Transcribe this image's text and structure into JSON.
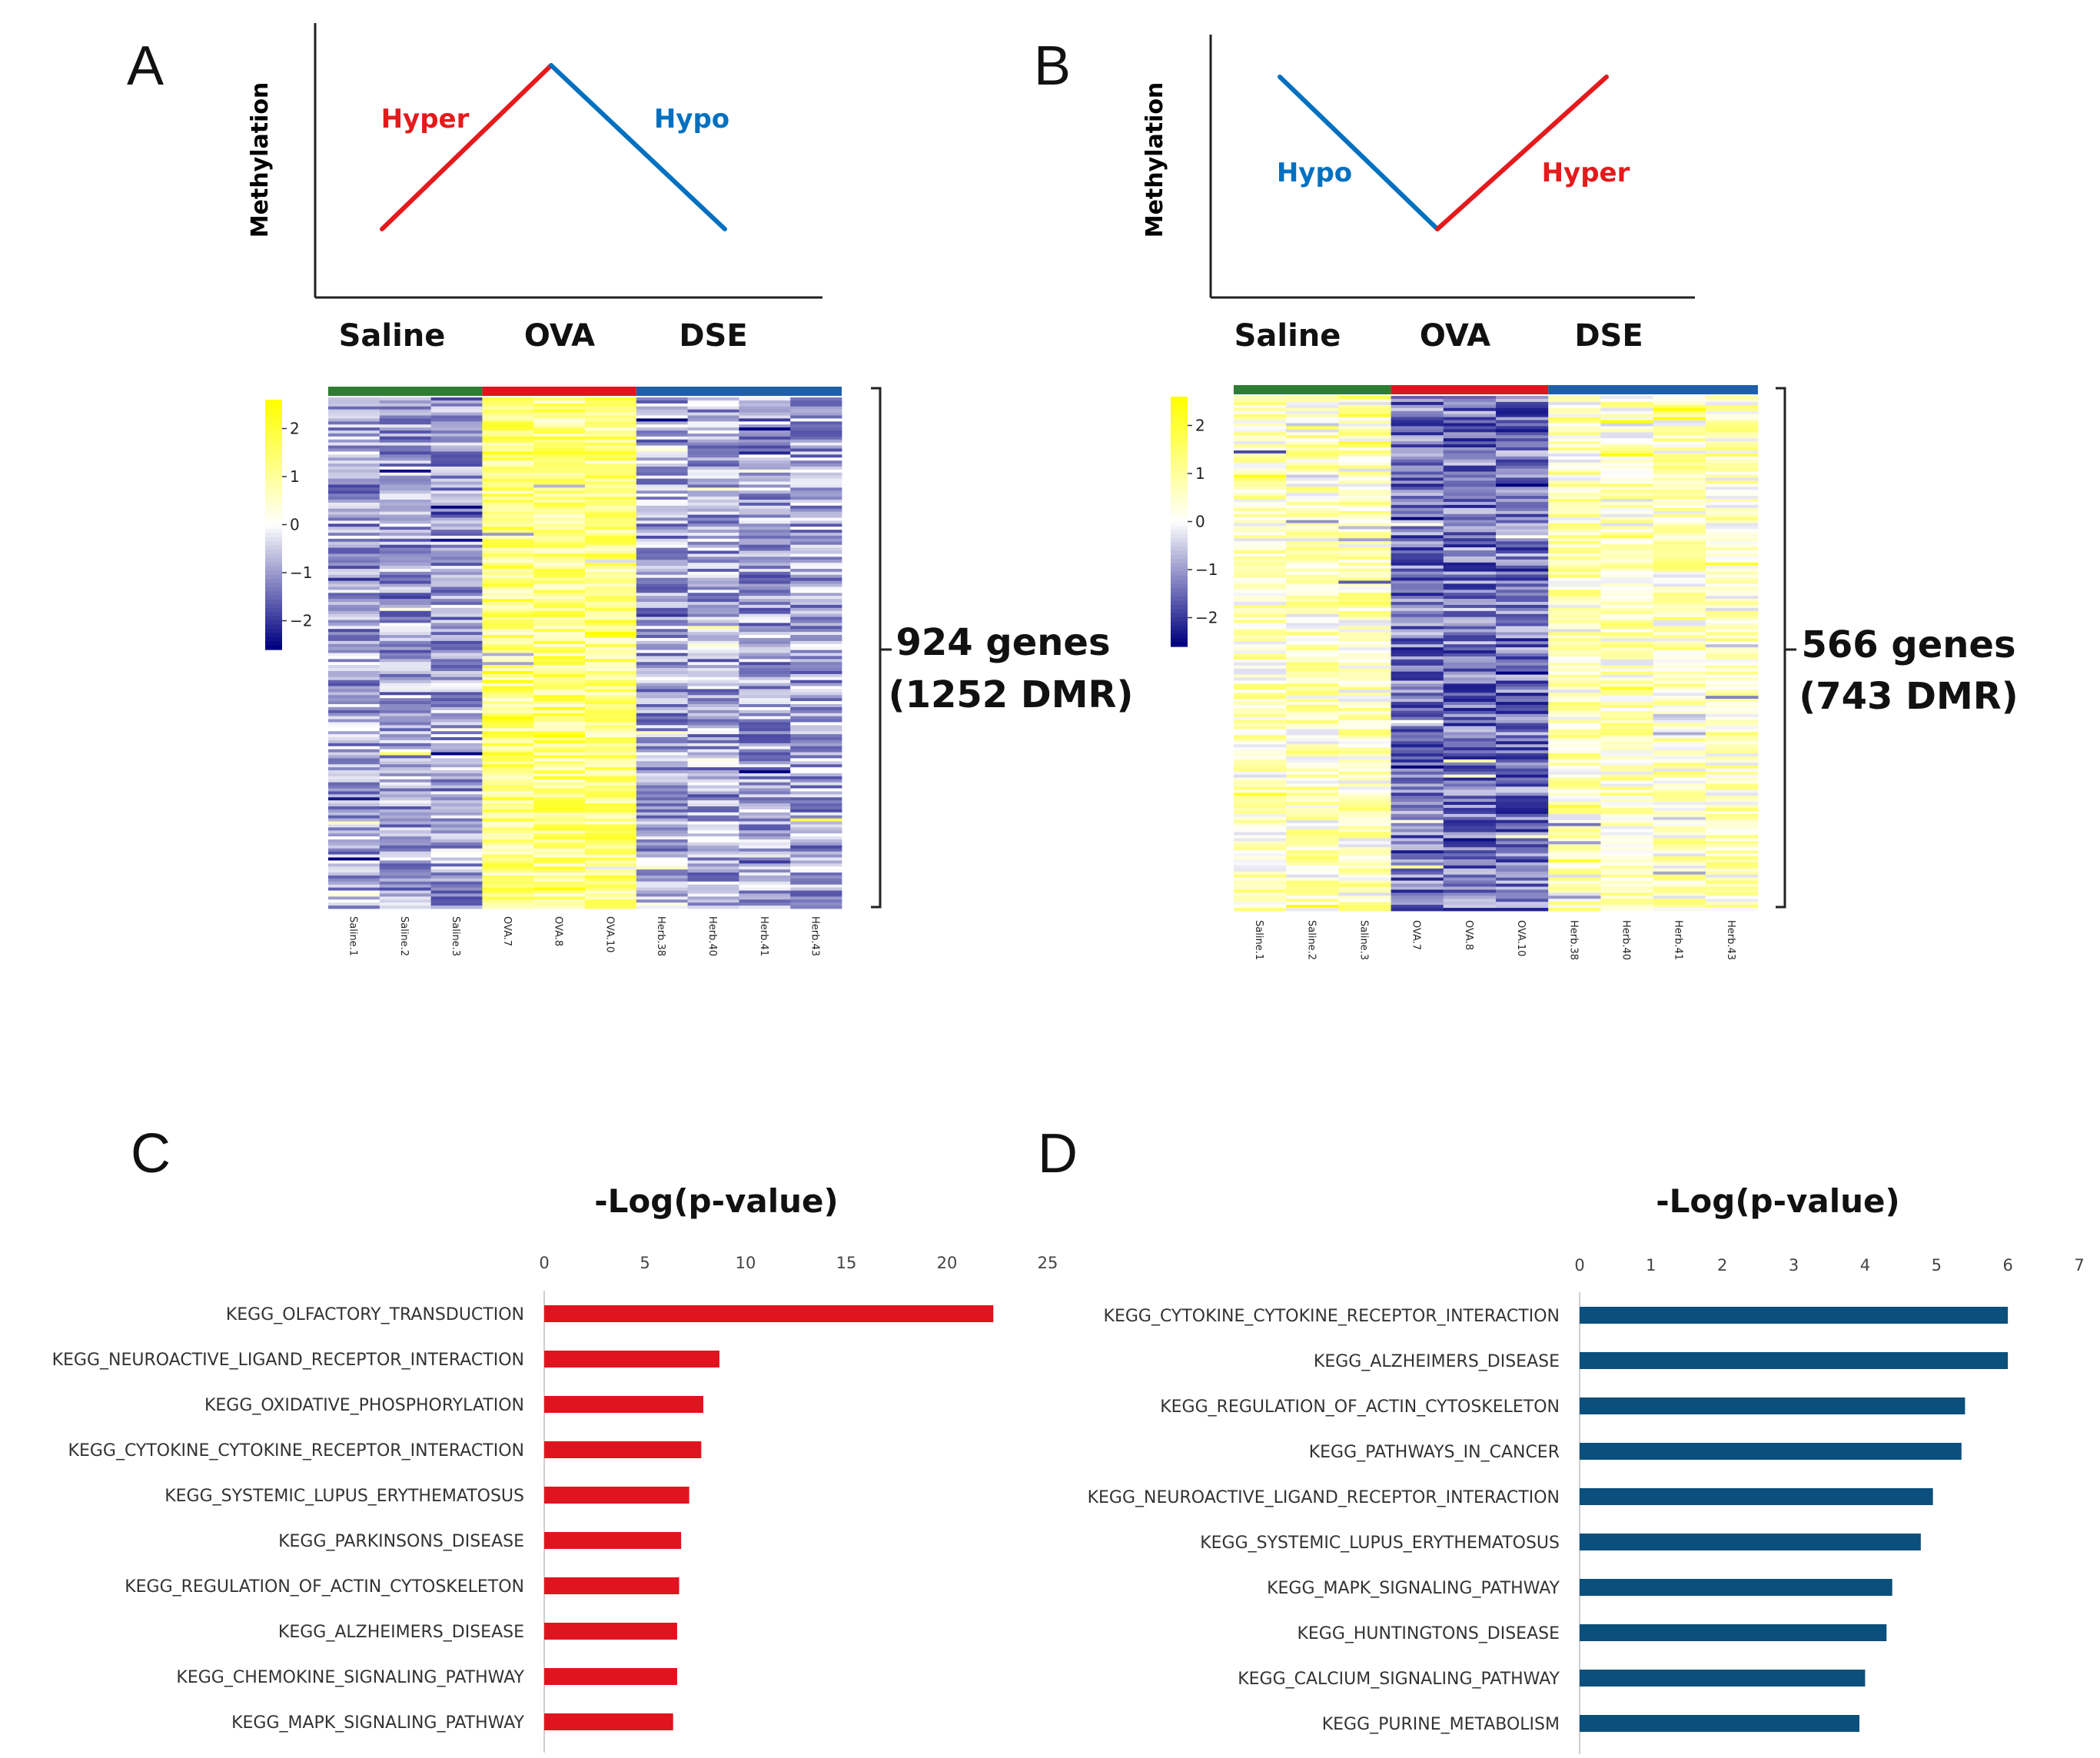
{
  "panels": {
    "A": {
      "letter": "A",
      "ylabel": "Methylation",
      "trend_left": {
        "text": "Hyper",
        "color": "#e41a1c"
      },
      "trend_right": {
        "text": "Hypo",
        "color": "#0070c0"
      },
      "trend_shape": [
        0,
        1,
        0
      ],
      "groups": [
        "Saline",
        "OVA",
        "DSE"
      ],
      "gene_count_line1": "924 genes",
      "gene_count_line2": "(1252 DMR)",
      "colorbar_ticks": [
        "2",
        "1",
        "0",
        "−1",
        "−2"
      ],
      "samples": [
        "Saline.1",
        "Saline.2",
        "Saline.3",
        "OVA.7",
        "OVA.8",
        "OVA.10",
        "Herb.38",
        "Herb.40",
        "Herb.41",
        "Herb.43"
      ],
      "sample_levels": [
        -0.9,
        -0.9,
        -0.9,
        1.3,
        1.3,
        1.3,
        -0.9,
        -0.9,
        -0.9,
        -0.9
      ]
    },
    "B": {
      "letter": "B",
      "ylabel": "Methylation",
      "trend_left": {
        "text": "Hypo",
        "color": "#0070c0"
      },
      "trend_right": {
        "text": "Hyper",
        "color": "#e41a1c"
      },
      "trend_shape": [
        1,
        0,
        1
      ],
      "groups": [
        "Saline",
        "OVA",
        "DSE"
      ],
      "gene_count_line1": "566 genes",
      "gene_count_line2": "(743 DMR)",
      "colorbar_ticks": [
        "2",
        "1",
        "0",
        "−1",
        "−2"
      ],
      "samples": [
        "Saline.1",
        "Saline.2",
        "Saline.3",
        "OVA.7",
        "OVA.8",
        "OVA.10",
        "Herb.38",
        "Herb.40",
        "Herb.41",
        "Herb.43"
      ],
      "sample_levels": [
        0.6,
        0.6,
        0.6,
        -1.4,
        -1.4,
        -1.4,
        0.6,
        0.6,
        0.6,
        0.6
      ]
    }
  },
  "colors": {
    "saline": "#2e7d32",
    "ova": "#e0141e",
    "dse": "#1f5fa8",
    "heat_high": "#ffff00",
    "heat_mid": "#ffffff",
    "heat_low": "#000080",
    "bar_c": "#e0141e",
    "bar_d": "#0b4f7c"
  },
  "chart_data": [
    {
      "panel": "C",
      "letter": "C",
      "type": "bar",
      "orientation": "horizontal",
      "title": "-Log(p-value)",
      "xlim": [
        0,
        25
      ],
      "xticks": [
        "0",
        "5",
        "10",
        "15",
        "20",
        "25"
      ],
      "categories": [
        "KEGG_OLFACTORY_TRANSDUCTION",
        "KEGG_NEUROACTIVE_LIGAND_RECEPTOR_INTERACTION",
        "KEGG_OXIDATIVE_PHOSPHORYLATION",
        "KEGG_CYTOKINE_CYTOKINE_RECEPTOR_INTERACTION",
        "KEGG_SYSTEMIC_LUPUS_ERYTHEMATOSUS",
        "KEGG_PARKINSONS_DISEASE",
        "KEGG_REGULATION_OF_ACTIN_CYTOSKELETON",
        "KEGG_ALZHEIMERS_DISEASE",
        "KEGG_CHEMOKINE_SIGNALING_PATHWAY",
        "KEGG_MAPK_SIGNALING_PATHWAY"
      ],
      "values": [
        22.3,
        8.7,
        7.9,
        7.8,
        7.2,
        6.8,
        6.7,
        6.6,
        6.6,
        6.4
      ]
    },
    {
      "panel": "D",
      "letter": "D",
      "type": "bar",
      "orientation": "horizontal",
      "title": "-Log(p-value)",
      "xlim": [
        0,
        7
      ],
      "xticks": [
        "0",
        "1",
        "2",
        "3",
        "4",
        "5",
        "6",
        "7"
      ],
      "categories": [
        "KEGG_CYTOKINE_CYTOKINE_RECEPTOR_INTERACTION",
        "KEGG_ALZHEIMERS_DISEASE",
        "KEGG_REGULATION_OF_ACTIN_CYTOSKELETON",
        "KEGG_PATHWAYS_IN_CANCER",
        "KEGG_NEUROACTIVE_LIGAND_RECEPTOR_INTERACTION",
        "KEGG_SYSTEMIC_LUPUS_ERYTHEMATOSUS",
        "KEGG_MAPK_SIGNALING_PATHWAY",
        "KEGG_HUNTINGTONS_DISEASE",
        "KEGG_CALCIUM_SIGNALING_PATHWAY",
        "KEGG_PURINE_METABOLISM"
      ],
      "values": [
        6.0,
        6.0,
        5.4,
        5.35,
        4.95,
        4.78,
        4.38,
        4.3,
        4.0,
        3.92
      ]
    }
  ]
}
